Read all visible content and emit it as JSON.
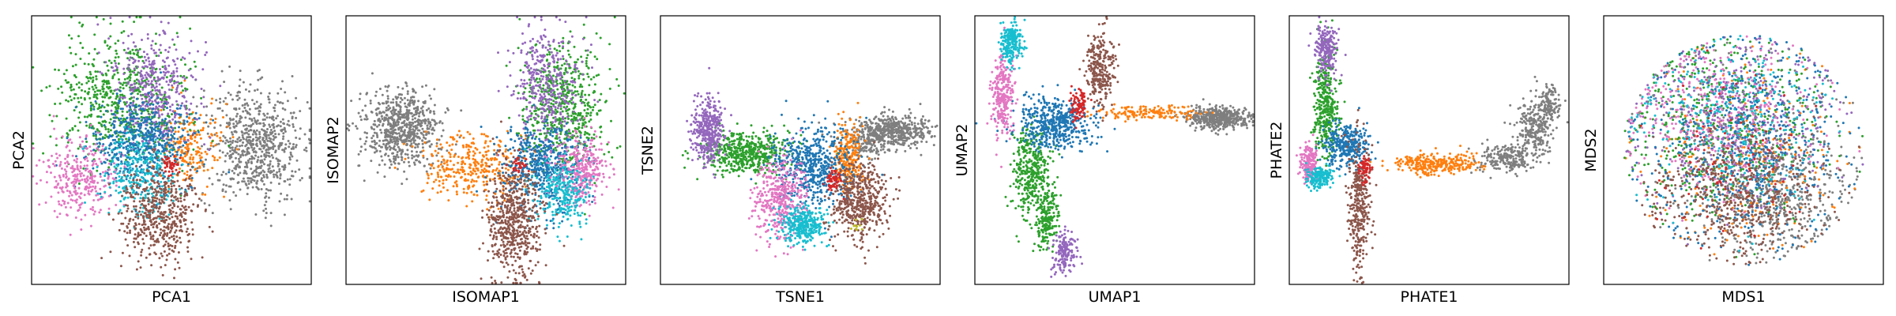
{
  "chart_data": [
    {
      "type": "scatter",
      "xlabel": "PCA1",
      "ylabel": "PCA2",
      "grid": false,
      "xlim": [
        0,
        1
      ],
      "ylim": [
        0,
        1
      ],
      "series": [
        {
          "color": "#7f7f7f",
          "clusters": [
            {
              "cx": 0.8,
              "cy": 0.52,
              "sx": 0.085,
              "sy": 0.105,
              "n": 700
            }
          ]
        },
        {
          "color": "#ff7f0e",
          "clusters": [
            {
              "cx": 0.56,
              "cy": 0.51,
              "sx": 0.055,
              "sy": 0.08,
              "n": 220
            }
          ]
        },
        {
          "color": "#2ca02c",
          "clusters": [
            {
              "cx": 0.33,
              "cy": 0.68,
              "sx": 0.12,
              "sy": 0.12,
              "n": 650
            }
          ]
        },
        {
          "color": "#9467bd",
          "clusters": [
            {
              "cx": 0.44,
              "cy": 0.72,
              "sx": 0.075,
              "sy": 0.11,
              "n": 420
            }
          ]
        },
        {
          "color": "#1f77b4",
          "clusters": [
            {
              "cx": 0.4,
              "cy": 0.52,
              "sx": 0.09,
              "sy": 0.08,
              "n": 560
            }
          ]
        },
        {
          "color": "#e377c2",
          "clusters": [
            {
              "cx": 0.18,
              "cy": 0.4,
              "sx": 0.065,
              "sy": 0.07,
              "n": 300
            }
          ]
        },
        {
          "color": "#17becf",
          "clusters": [
            {
              "cx": 0.38,
              "cy": 0.4,
              "sx": 0.07,
              "sy": 0.07,
              "n": 280
            }
          ]
        },
        {
          "color": "#8c564b",
          "clusters": [
            {
              "cx": 0.46,
              "cy": 0.26,
              "sx": 0.07,
              "sy": 0.095,
              "n": 520
            }
          ]
        },
        {
          "color": "#d62728",
          "clusters": [
            {
              "cx": 0.5,
              "cy": 0.45,
              "sx": 0.02,
              "sy": 0.02,
              "n": 40
            }
          ]
        }
      ]
    },
    {
      "type": "scatter",
      "xlabel": "ISOMAP1",
      "ylabel": "ISOMAP2",
      "grid": false,
      "xlim": [
        0,
        1
      ],
      "ylim": [
        0,
        1
      ],
      "series": [
        {
          "color": "#7f7f7f",
          "clusters": [
            {
              "cx": 0.2,
              "cy": 0.58,
              "sx": 0.07,
              "sy": 0.07,
              "n": 700
            }
          ]
        },
        {
          "color": "#ff7f0e",
          "clusters": [
            {
              "cx": 0.45,
              "cy": 0.44,
              "sx": 0.09,
              "sy": 0.06,
              "n": 350
            }
          ]
        },
        {
          "color": "#2ca02c",
          "clusters": [
            {
              "cx": 0.78,
              "cy": 0.66,
              "sx": 0.07,
              "sy": 0.12,
              "n": 600
            }
          ]
        },
        {
          "color": "#9467bd",
          "clusters": [
            {
              "cx": 0.72,
              "cy": 0.74,
              "sx": 0.06,
              "sy": 0.11,
              "n": 380
            }
          ]
        },
        {
          "color": "#1f77b4",
          "clusters": [
            {
              "cx": 0.7,
              "cy": 0.44,
              "sx": 0.07,
              "sy": 0.08,
              "n": 520
            }
          ]
        },
        {
          "color": "#e377c2",
          "clusters": [
            {
              "cx": 0.84,
              "cy": 0.42,
              "sx": 0.045,
              "sy": 0.07,
              "n": 320
            }
          ]
        },
        {
          "color": "#17becf",
          "clusters": [
            {
              "cx": 0.78,
              "cy": 0.34,
              "sx": 0.05,
              "sy": 0.06,
              "n": 260
            }
          ]
        },
        {
          "color": "#8c564b",
          "clusters": [
            {
              "cx": 0.6,
              "cy": 0.24,
              "sx": 0.05,
              "sy": 0.11,
              "n": 600
            }
          ]
        },
        {
          "color": "#d62728",
          "clusters": [
            {
              "cx": 0.62,
              "cy": 0.45,
              "sx": 0.015,
              "sy": 0.015,
              "n": 30
            }
          ]
        }
      ]
    },
    {
      "type": "scatter",
      "xlabel": "TSNE1",
      "ylabel": "TSNE2",
      "grid": false,
      "xlim": [
        0,
        1
      ],
      "ylim": [
        0,
        1
      ],
      "series": [
        {
          "color": "#7f7f7f",
          "clusters": [
            {
              "cx": 0.83,
              "cy": 0.57,
              "sx": 0.07,
              "sy": 0.03,
              "n": 500
            },
            {
              "cx": 0.74,
              "cy": 0.53,
              "sx": 0.03,
              "sy": 0.03,
              "n": 120
            }
          ]
        },
        {
          "color": "#ff7f0e",
          "clusters": [
            {
              "cx": 0.67,
              "cy": 0.48,
              "sx": 0.025,
              "sy": 0.06,
              "n": 260
            }
          ]
        },
        {
          "color": "#2ca02c",
          "clusters": [
            {
              "cx": 0.31,
              "cy": 0.49,
              "sx": 0.08,
              "sy": 0.04,
              "n": 520
            }
          ]
        },
        {
          "color": "#9467bd",
          "clusters": [
            {
              "cx": 0.17,
              "cy": 0.57,
              "sx": 0.03,
              "sy": 0.06,
              "n": 380
            }
          ]
        },
        {
          "color": "#1f77b4",
          "clusters": [
            {
              "cx": 0.55,
              "cy": 0.44,
              "sx": 0.07,
              "sy": 0.07,
              "n": 560
            }
          ]
        },
        {
          "color": "#e377c2",
          "clusters": [
            {
              "cx": 0.43,
              "cy": 0.32,
              "sx": 0.045,
              "sy": 0.08,
              "n": 420
            }
          ]
        },
        {
          "color": "#17becf",
          "clusters": [
            {
              "cx": 0.51,
              "cy": 0.22,
              "sx": 0.04,
              "sy": 0.035,
              "n": 320
            }
          ]
        },
        {
          "color": "#8c564b",
          "clusters": [
            {
              "cx": 0.71,
              "cy": 0.31,
              "sx": 0.05,
              "sy": 0.07,
              "n": 500
            }
          ]
        },
        {
          "color": "#d62728",
          "clusters": [
            {
              "cx": 0.62,
              "cy": 0.39,
              "sx": 0.012,
              "sy": 0.02,
              "n": 60
            }
          ]
        },
        {
          "color": "#bcbd22",
          "clusters": [
            {
              "cx": 0.7,
              "cy": 0.22,
              "sx": 0.01,
              "sy": 0.01,
              "n": 10
            }
          ]
        }
      ]
    },
    {
      "type": "scatter",
      "xlabel": "UMAP1",
      "ylabel": "UMAP2",
      "grid": false,
      "xlim": [
        0,
        1
      ],
      "ylim": [
        0,
        1
      ],
      "series": [
        {
          "color": "#7f7f7f",
          "clusters": [
            {
              "cx": 0.87,
              "cy": 0.62,
              "sx": 0.055,
              "sy": 0.02,
              "n": 450
            }
          ]
        },
        {
          "color": "#ff7f0e",
          "clusters": [
            {
              "cx": 0.62,
              "cy": 0.64,
              "sx": 0.09,
              "sy": 0.012,
              "n": 160
            }
          ]
        },
        {
          "color": "#2ca02c",
          "clusters": [
            {
              "cx": 0.2,
              "cy": 0.42,
              "sx": 0.035,
              "sy": 0.09,
              "n": 380
            },
            {
              "cx": 0.26,
              "cy": 0.25,
              "sx": 0.02,
              "sy": 0.06,
              "n": 200
            }
          ]
        },
        {
          "color": "#9467bd",
          "clusters": [
            {
              "cx": 0.32,
              "cy": 0.12,
              "sx": 0.02,
              "sy": 0.04,
              "n": 160
            }
          ]
        },
        {
          "color": "#1f77b4",
          "clusters": [
            {
              "cx": 0.29,
              "cy": 0.6,
              "sx": 0.07,
              "sy": 0.05,
              "n": 520
            }
          ]
        },
        {
          "color": "#e377c2",
          "clusters": [
            {
              "cx": 0.1,
              "cy": 0.71,
              "sx": 0.02,
              "sy": 0.08,
              "n": 280
            }
          ]
        },
        {
          "color": "#17becf",
          "clusters": [
            {
              "cx": 0.13,
              "cy": 0.9,
              "sx": 0.02,
              "sy": 0.04,
              "n": 220
            }
          ]
        },
        {
          "color": "#8c564b",
          "clusters": [
            {
              "cx": 0.45,
              "cy": 0.8,
              "sx": 0.025,
              "sy": 0.07,
              "n": 280
            }
          ]
        },
        {
          "color": "#d62728",
          "clusters": [
            {
              "cx": 0.37,
              "cy": 0.67,
              "sx": 0.018,
              "sy": 0.025,
              "n": 90
            }
          ]
        }
      ]
    },
    {
      "type": "scatter",
      "xlabel": "PHATE1",
      "ylabel": "PHATE2",
      "grid": false,
      "xlim": [
        0,
        1
      ],
      "ylim": [
        0,
        1
      ],
      "series": [
        {
          "color": "#7f7f7f",
          "clusters": [
            {
              "cx": 0.78,
              "cy": 0.47,
              "sx": 0.05,
              "sy": 0.025,
              "n": 220
            },
            {
              "cx": 0.88,
              "cy": 0.58,
              "sx": 0.035,
              "sy": 0.05,
              "n": 240
            },
            {
              "cx": 0.93,
              "cy": 0.68,
              "sx": 0.02,
              "sy": 0.03,
              "n": 120
            }
          ]
        },
        {
          "color": "#ff7f0e",
          "clusters": [
            {
              "cx": 0.52,
              "cy": 0.45,
              "sx": 0.08,
              "sy": 0.02,
              "n": 300
            }
          ]
        },
        {
          "color": "#2ca02c",
          "clusters": [
            {
              "cx": 0.13,
              "cy": 0.67,
              "sx": 0.02,
              "sy": 0.11,
              "n": 380
            }
          ]
        },
        {
          "color": "#9467bd",
          "clusters": [
            {
              "cx": 0.13,
              "cy": 0.88,
              "sx": 0.02,
              "sy": 0.05,
              "n": 220
            }
          ]
        },
        {
          "color": "#1f77b4",
          "clusters": [
            {
              "cx": 0.21,
              "cy": 0.52,
              "sx": 0.04,
              "sy": 0.04,
              "n": 330
            }
          ]
        },
        {
          "color": "#e377c2",
          "clusters": [
            {
              "cx": 0.07,
              "cy": 0.45,
              "sx": 0.015,
              "sy": 0.035,
              "n": 180
            }
          ]
        },
        {
          "color": "#17becf",
          "clusters": [
            {
              "cx": 0.11,
              "cy": 0.4,
              "sx": 0.025,
              "sy": 0.02,
              "n": 160
            }
          ]
        },
        {
          "color": "#8c564b",
          "clusters": [
            {
              "cx": 0.25,
              "cy": 0.3,
              "sx": 0.02,
              "sy": 0.12,
              "n": 340
            }
          ]
        },
        {
          "color": "#d62728",
          "clusters": [
            {
              "cx": 0.27,
              "cy": 0.43,
              "sx": 0.01,
              "sy": 0.03,
              "n": 60
            }
          ]
        }
      ]
    },
    {
      "type": "scatter",
      "xlabel": "MDS1",
      "ylabel": "MDS2",
      "grid": false,
      "xlim": [
        0,
        1
      ],
      "ylim": [
        0,
        1
      ],
      "series": [
        {
          "color": "#7f7f7f",
          "clusters": [
            {
              "cx": 0.62,
              "cy": 0.34,
              "sx": 0.14,
              "sy": 0.11,
              "n": 520
            },
            {
              "cx": 0.5,
              "cy": 0.52,
              "sx": 0.18,
              "sy": 0.18,
              "n": 200
            }
          ]
        },
        {
          "color": "#ff7f0e",
          "clusters": [
            {
              "cx": 0.5,
              "cy": 0.5,
              "sx": 0.18,
              "sy": 0.18,
              "n": 260
            }
          ]
        },
        {
          "color": "#2ca02c",
          "clusters": [
            {
              "cx": 0.42,
              "cy": 0.6,
              "sx": 0.18,
              "sy": 0.16,
              "n": 520
            }
          ]
        },
        {
          "color": "#9467bd",
          "clusters": [
            {
              "cx": 0.48,
              "cy": 0.62,
              "sx": 0.18,
              "sy": 0.16,
              "n": 420
            }
          ]
        },
        {
          "color": "#1f77b4",
          "clusters": [
            {
              "cx": 0.5,
              "cy": 0.52,
              "sx": 0.18,
              "sy": 0.18,
              "n": 560
            }
          ]
        },
        {
          "color": "#e377c2",
          "clusters": [
            {
              "cx": 0.4,
              "cy": 0.62,
              "sx": 0.17,
              "sy": 0.15,
              "n": 360
            }
          ]
        },
        {
          "color": "#17becf",
          "clusters": [
            {
              "cx": 0.45,
              "cy": 0.6,
              "sx": 0.18,
              "sy": 0.16,
              "n": 300
            }
          ]
        },
        {
          "color": "#8c564b",
          "clusters": [
            {
              "cx": 0.48,
              "cy": 0.33,
              "sx": 0.15,
              "sy": 0.11,
              "n": 480
            }
          ]
        },
        {
          "color": "#d62728",
          "clusters": [
            {
              "cx": 0.5,
              "cy": 0.45,
              "sx": 0.16,
              "sy": 0.16,
              "n": 80
            }
          ]
        }
      ]
    }
  ]
}
